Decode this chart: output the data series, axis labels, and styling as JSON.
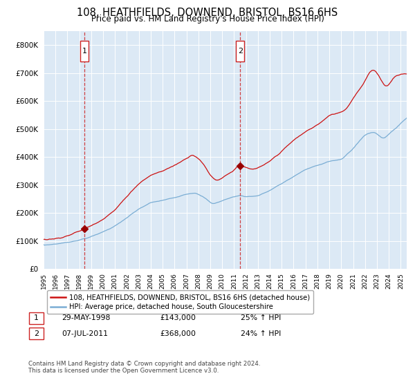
{
  "title": "108, HEATHFIELDS, DOWNEND, BRISTOL, BS16 6HS",
  "subtitle": "Price paid vs. HM Land Registry's House Price Index (HPI)",
  "background_color": "#ffffff",
  "plot_bg_color": "#dce9f5",
  "red_line_label": "108, HEATHFIELDS, DOWNEND, BRISTOL, BS16 6HS (detached house)",
  "blue_line_label": "HPI: Average price, detached house, South Gloucestershire",
  "annotation1_date": "29-MAY-1998",
  "annotation1_price": "£143,000",
  "annotation1_hpi": "25% ↑ HPI",
  "annotation2_date": "07-JUL-2011",
  "annotation2_price": "£368,000",
  "annotation2_hpi": "24% ↑ HPI",
  "footer": "Contains HM Land Registry data © Crown copyright and database right 2024.\nThis data is licensed under the Open Government Licence v3.0.",
  "vline1_x": 1998.42,
  "vline2_x": 2011.51,
  "sale1_x": 1998.42,
  "sale1_y": 143000,
  "sale2_x": 2011.51,
  "sale2_y": 368000,
  "ylim": [
    0,
    850000
  ],
  "xlim": [
    1995.0,
    2025.5
  ],
  "yticks": [
    0,
    100000,
    200000,
    300000,
    400000,
    500000,
    600000,
    700000,
    800000
  ],
  "xtick_start": 1995,
  "xtick_end": 2025
}
